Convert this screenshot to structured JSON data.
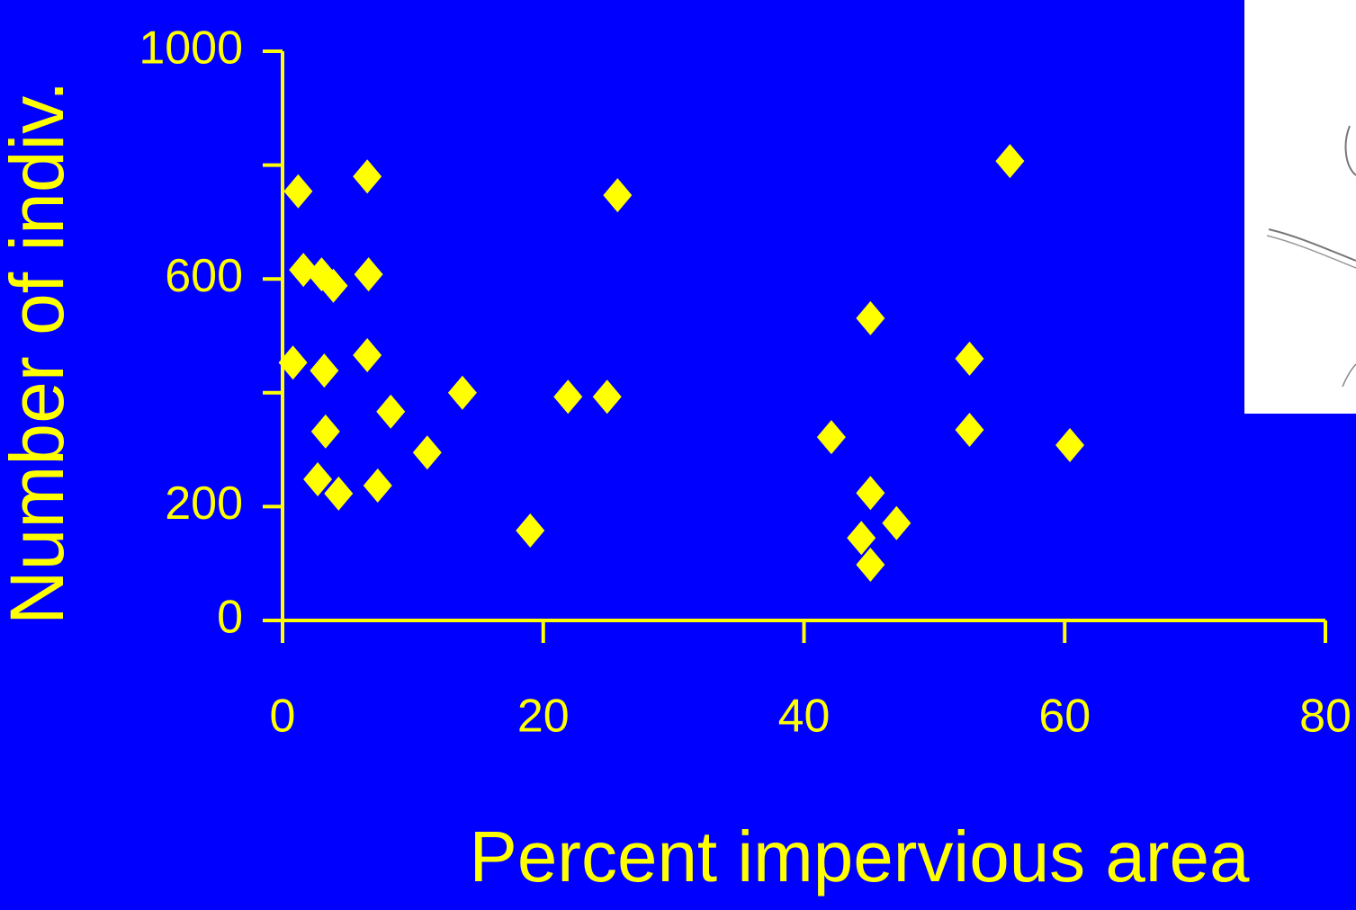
{
  "chart_data": {
    "type": "scatter",
    "x_label": "Percent impervious area",
    "y_label": "Number of indiv.",
    "color": "#ffff00",
    "background": "#0000ff",
    "xlim": [
      0,
      80
    ],
    "xticks": [
      0,
      20,
      40,
      60,
      80
    ],
    "ylim": [
      0,
      1000
    ],
    "yticks": [
      0,
      200,
      600,
      1000
    ],
    "yticks_unlabeled": [
      400,
      800
    ],
    "x": [
      1.2,
      1.6,
      3.0,
      3.9,
      0.8,
      3.2,
      3.3,
      2.7,
      4.3,
      6.5,
      6.6,
      6.5,
      8.3,
      7.3,
      11.1,
      13.8,
      19.0,
      21.9,
      24.9,
      25.7,
      42.1,
      45.1,
      45.1,
      44.4,
      45.1,
      47.1,
      52.7,
      52.7,
      55.8,
      60.4
    ],
    "values": [
      754,
      616,
      608,
      588,
      453,
      439,
      332,
      248,
      223,
      780,
      608,
      466,
      367,
      237,
      295,
      400,
      158,
      393,
      393,
      747,
      322,
      531,
      224,
      145,
      98,
      171,
      460,
      335,
      807,
      308
    ]
  }
}
